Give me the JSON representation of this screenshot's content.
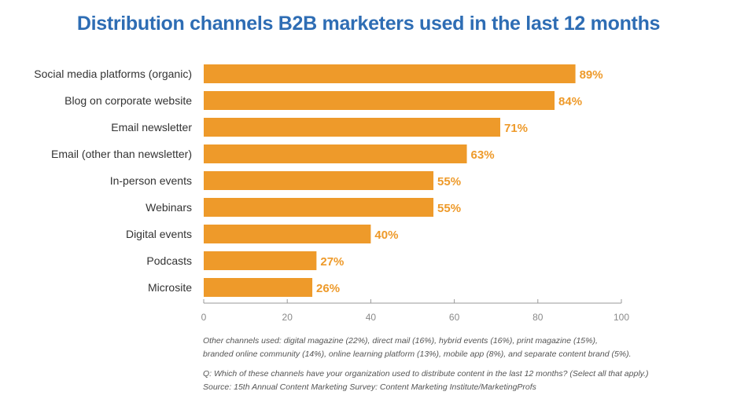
{
  "chart_data": {
    "type": "bar",
    "orientation": "horizontal",
    "title": "Distribution channels B2B marketers used in the last 12 months",
    "categories": [
      "Social media platforms (organic)",
      "Blog on corporate website",
      "Email newsletter",
      "Email (other than newsletter)",
      "In-person events",
      "Webinars",
      "Digital events",
      "Podcasts",
      "Microsite"
    ],
    "values": [
      89,
      84,
      71,
      63,
      55,
      55,
      40,
      27,
      26
    ],
    "value_labels": [
      "89%",
      "84%",
      "71%",
      "63%",
      "55%",
      "55%",
      "40%",
      "27%",
      "26%"
    ],
    "xlim": [
      0,
      100
    ],
    "xticks": [
      0,
      20,
      40,
      60,
      80,
      100
    ],
    "xtick_labels": [
      "0",
      "20",
      "40",
      "60",
      "80",
      "100"
    ],
    "bar_color": "#ee9a2a",
    "label_color": "#ee9a2a",
    "title_color": "#2e6db4",
    "grid": false
  },
  "notes": {
    "other_line1": "Other channels used: digital magazine (22%), direct mail (16%), hybrid events (16%), print magazine (15%),",
    "other_line2": "branded online community (14%), online learning platform (13%), mobile app (8%), and separate content brand (5%).",
    "question": "Q: Which of these channels have your organization used to distribute content in the last 12 months? (Select all that apply.)",
    "source": "Source: 15th Annual Content Marketing Survey: Content Marketing Institute/MarketingProfs"
  }
}
